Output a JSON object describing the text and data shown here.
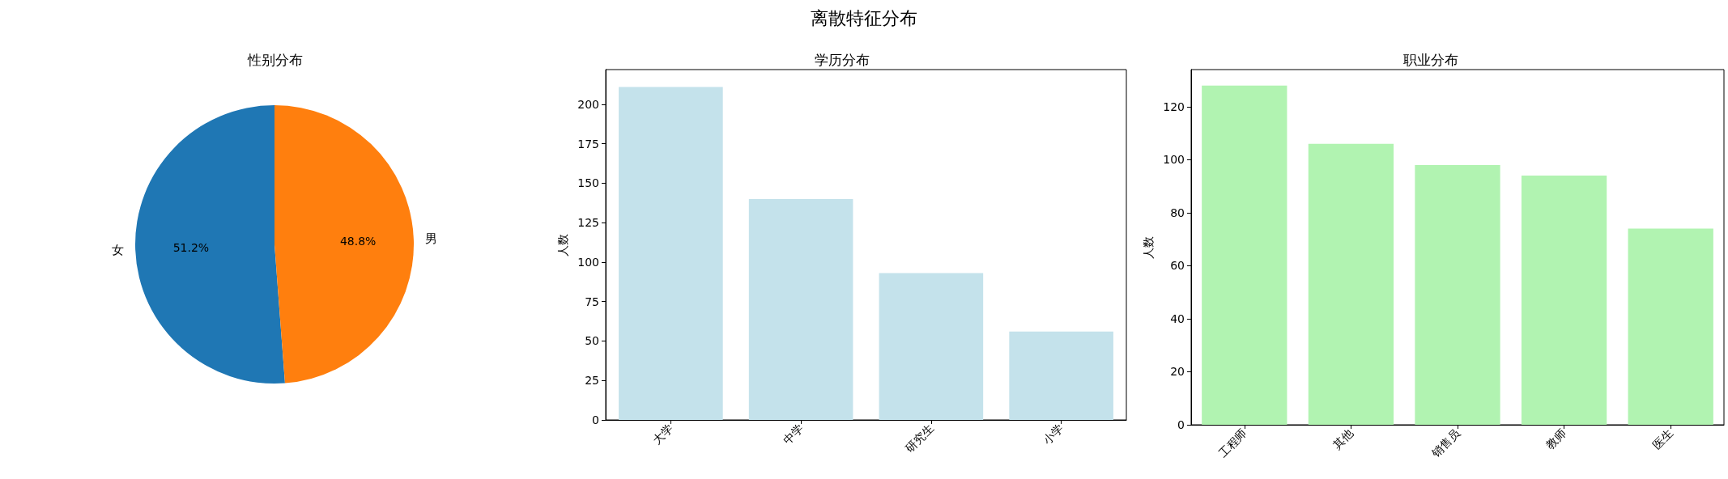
{
  "chart_data": [
    {
      "type": "other",
      "title": "离散特征分布"
    },
    {
      "type": "pie",
      "title": "性别分布",
      "categories": [
        "女",
        "男"
      ],
      "values": [
        51.2,
        48.8
      ],
      "colors": [
        "#1f77b4",
        "#ff7f0e"
      ],
      "value_labels": [
        "51.2%",
        "48.8%"
      ]
    },
    {
      "type": "bar",
      "title": "学历分布",
      "ylabel": "人数",
      "categories": [
        "大学",
        "中学",
        "研究生",
        "小学"
      ],
      "values": [
        211,
        140,
        93,
        56
      ],
      "color": "#c4e2eb",
      "ylim": [
        0,
        222
      ],
      "yticks": [
        0,
        25,
        50,
        75,
        100,
        125,
        150,
        175,
        200
      ]
    },
    {
      "type": "bar",
      "title": "职业分布",
      "ylabel": "人数",
      "categories": [
        "工程师",
        "其他",
        "销售员",
        "教师",
        "医生"
      ],
      "values": [
        128,
        106,
        98,
        94,
        74
      ],
      "color": "#b1f3b1",
      "ylim": [
        0,
        134
      ],
      "yticks": [
        0,
        20,
        40,
        60,
        80,
        100,
        120
      ]
    }
  ]
}
